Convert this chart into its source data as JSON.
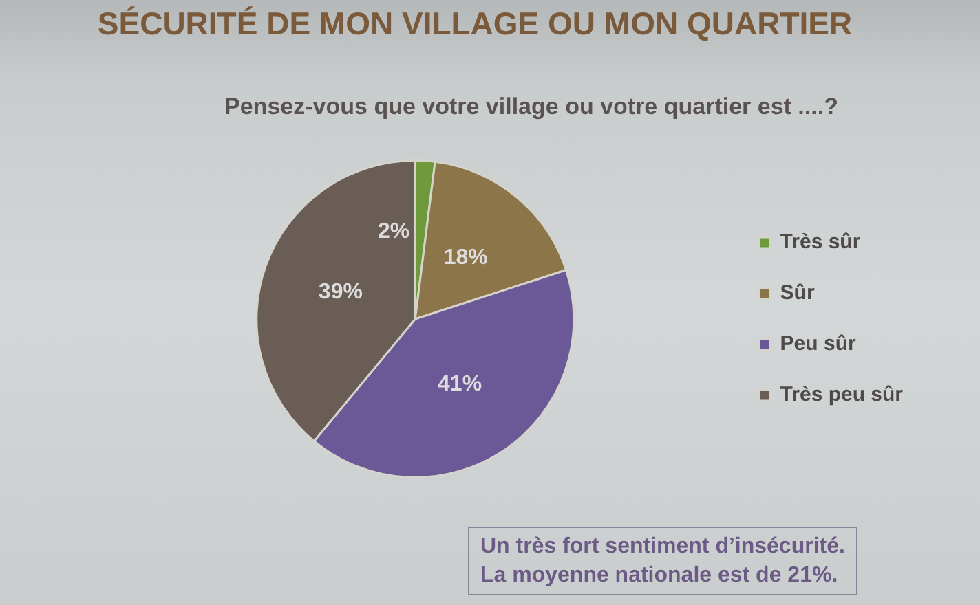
{
  "chart_data": {
    "type": "pie",
    "title": "SÉCURITÉ DE MON VILLAGE OU MON QUARTIER",
    "subtitle": "Pensez-vous que votre village ou votre quartier est ....?",
    "categories": [
      "Très sûr",
      "Sûr",
      "Peu sûr",
      "Très peu sûr"
    ],
    "values": [
      2,
      18,
      41,
      39
    ],
    "colors": [
      "#6e9a3c",
      "#8c7548",
      "#6b5896",
      "#6a5d55"
    ],
    "value_labels": [
      "2%",
      "18%",
      "41%",
      "39%"
    ],
    "legend": "right",
    "annotations": [
      "Un très fort sentiment d’insécurité.",
      "La moyenne nationale est de 21%."
    ]
  }
}
